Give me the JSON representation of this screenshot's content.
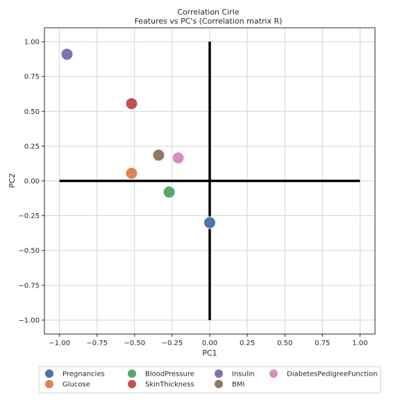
{
  "chart_data": {
    "type": "scatter",
    "title": "Correlation Cirle",
    "subtitle": "Features vs PC's (Correlation matrix R)",
    "xlabel": "PC1",
    "ylabel": "PC2",
    "xlim": [
      -1.1,
      1.1
    ],
    "ylim": [
      -1.1,
      1.1
    ],
    "xticks": [
      -1.0,
      -0.75,
      -0.5,
      -0.25,
      0.0,
      0.25,
      0.5,
      0.75,
      1.0
    ],
    "xtick_labels": [
      "−1.00",
      "−0.75",
      "−0.50",
      "−0.25",
      "0.00",
      "0.25",
      "0.50",
      "0.75",
      "1.00"
    ],
    "yticks": [
      1.0,
      0.75,
      0.5,
      0.25,
      0.0,
      -0.25,
      -0.5,
      -0.75,
      -1.0
    ],
    "ytick_labels": [
      "1.00",
      "0.75",
      "0.50",
      "0.25",
      "0.00",
      "−0.25",
      "−0.50",
      "−0.75",
      "−1.00"
    ],
    "grid": true,
    "legend_placement": "bottom",
    "reference_lines": [
      {
        "orientation": "horizontal",
        "value": 0,
        "from": -1,
        "to": 1,
        "color": "#000000"
      },
      {
        "orientation": "vertical",
        "value": 0,
        "from": -1,
        "to": 1,
        "color": "#000000"
      }
    ],
    "series": [
      {
        "name": "Pregnancies",
        "color": "#4c72b0",
        "x": 0.0,
        "y": -0.3
      },
      {
        "name": "Glucose",
        "color": "#dd8452",
        "x": -0.52,
        "y": 0.055
      },
      {
        "name": "BloodPressure",
        "color": "#55a868",
        "x": -0.27,
        "y": -0.08
      },
      {
        "name": "SkinThickness",
        "color": "#c44e52",
        "x": -0.52,
        "y": 0.555
      },
      {
        "name": "Insulin",
        "color": "#8172b3",
        "x": -0.95,
        "y": 0.91
      },
      {
        "name": "BMI",
        "color": "#937860",
        "x": -0.34,
        "y": 0.185
      },
      {
        "name": "DiabetesPedigreeFunction",
        "color": "#da8bc3",
        "x": -0.21,
        "y": 0.165
      }
    ]
  }
}
